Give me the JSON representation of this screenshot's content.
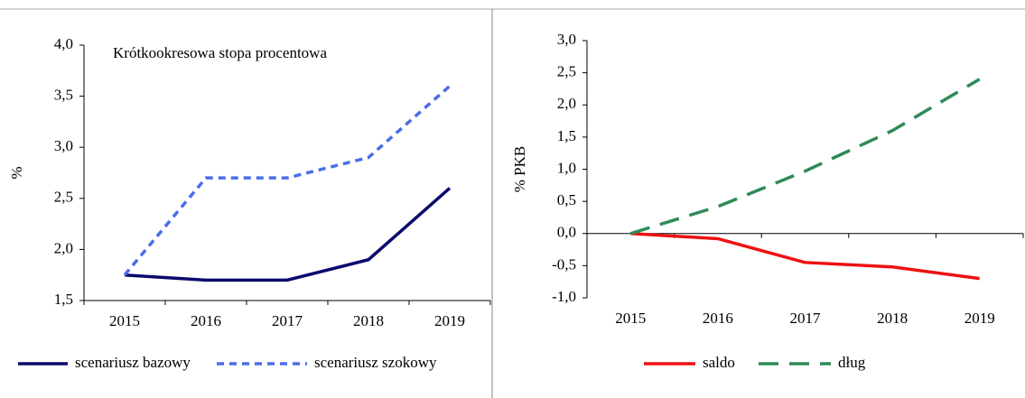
{
  "chart_data": [
    {
      "type": "line",
      "annotation": "Krótkookresowa stopa procentowa",
      "y_label": "%",
      "categories": [
        "2015",
        "2016",
        "2017",
        "2018",
        "2019"
      ],
      "series": [
        {
          "name": "scenariusz bazowy",
          "color": "#0a0a6e",
          "dash": "solid",
          "values": [
            1.75,
            1.7,
            1.7,
            1.9,
            2.6
          ]
        },
        {
          "name": "scenariusz szokowy",
          "color": "#4a6ee8",
          "dash": "short",
          "values": [
            1.75,
            2.7,
            2.7,
            2.9,
            3.6
          ]
        }
      ],
      "ylim": [
        1.5,
        4.0
      ],
      "yticks": [
        {
          "value": 1.5,
          "label": "1,5"
        },
        {
          "value": 2.0,
          "label": "2,0"
        },
        {
          "value": 2.5,
          "label": "2,5"
        },
        {
          "value": 3.0,
          "label": "3,0"
        },
        {
          "value": 3.5,
          "label": "3,5"
        },
        {
          "value": 4.0,
          "label": "4,0"
        }
      ],
      "legend": "bottom"
    },
    {
      "type": "line",
      "y_label": "% PKB",
      "categories": [
        "2015",
        "2016",
        "2017",
        "2018",
        "2019"
      ],
      "series": [
        {
          "name": "saldo",
          "color": "#ee1111",
          "dash": "solid",
          "values": [
            0,
            -0.08,
            -0.45,
            -0.52,
            -0.7
          ]
        },
        {
          "name": "dług",
          "color": "#2e8b57",
          "dash": "long",
          "values": [
            0,
            0.42,
            0.97,
            1.6,
            2.4
          ]
        }
      ],
      "ylim": [
        -1.0,
        3.0
      ],
      "yticks": [
        {
          "value": -1.0,
          "label": "-1,0"
        },
        {
          "value": -0.5,
          "label": "-0,5"
        },
        {
          "value": 0,
          "label": "0,0"
        },
        {
          "value": 0.5,
          "label": "0,5"
        },
        {
          "value": 1.0,
          "label": "1,0"
        },
        {
          "value": 1.5,
          "label": "1,5"
        },
        {
          "value": 2.0,
          "label": "2,0"
        },
        {
          "value": 2.5,
          "label": "2,5"
        },
        {
          "value": 3.0,
          "label": "3,0"
        }
      ],
      "legend": "bottom"
    }
  ]
}
